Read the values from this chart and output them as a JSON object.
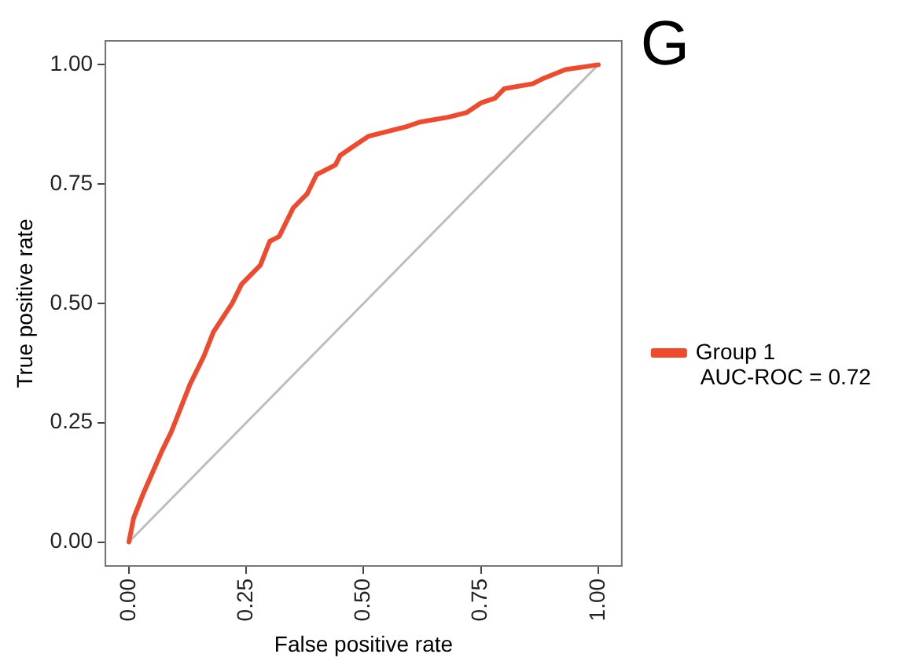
{
  "chart_data": {
    "type": "line",
    "xlabel": "False positive rate",
    "ylabel": "True positive rate",
    "xlim": [
      -0.05,
      1.05
    ],
    "ylim": [
      -0.05,
      1.05
    ],
    "xticks": [
      {
        "value": 0,
        "label": "0.00"
      },
      {
        "value": 0.25,
        "label": "0.25"
      },
      {
        "value": 0.5,
        "label": "0.50"
      },
      {
        "value": 0.75,
        "label": "0.75"
      },
      {
        "value": 1,
        "label": "1.00"
      }
    ],
    "yticks": [
      {
        "value": 0,
        "label": "0.00"
      },
      {
        "value": 0.25,
        "label": "0.25"
      },
      {
        "value": 0.5,
        "label": "0.50"
      },
      {
        "value": 0.75,
        "label": "0.75"
      },
      {
        "value": 1,
        "label": "1.00"
      }
    ],
    "grid": false,
    "legend": "right",
    "marker": "none",
    "line_style": "solid",
    "series": [
      {
        "name": "Group 1",
        "color": "#f04a2e",
        "x": [
          0,
          0.01,
          0.03,
          0.07,
          0.09,
          0.13,
          0.16,
          0.18,
          0.2,
          0.22,
          0.24,
          0.28,
          0.3,
          0.32,
          0.35,
          0.38,
          0.4,
          0.44,
          0.45,
          0.48,
          0.51,
          0.55,
          0.59,
          0.62,
          0.68,
          0.72,
          0.75,
          0.78,
          0.8,
          0.86,
          0.88,
          0.93,
          1
        ],
        "values": [
          0,
          0.05,
          0.1,
          0.19,
          0.23,
          0.33,
          0.39,
          0.44,
          0.47,
          0.5,
          0.54,
          0.58,
          0.63,
          0.64,
          0.7,
          0.73,
          0.77,
          0.79,
          0.81,
          0.83,
          0.85,
          0.86,
          0.87,
          0.88,
          0.89,
          0.9,
          0.92,
          0.93,
          0.95,
          0.96,
          0.97,
          0.99,
          1
        ]
      },
      {
        "color": "#bebebe",
        "x": [
          0,
          1
        ],
        "values": [
          0,
          1
        ]
      }
    ],
    "annotations": [
      "AUC-ROC = 0.72",
      "G"
    ]
  }
}
